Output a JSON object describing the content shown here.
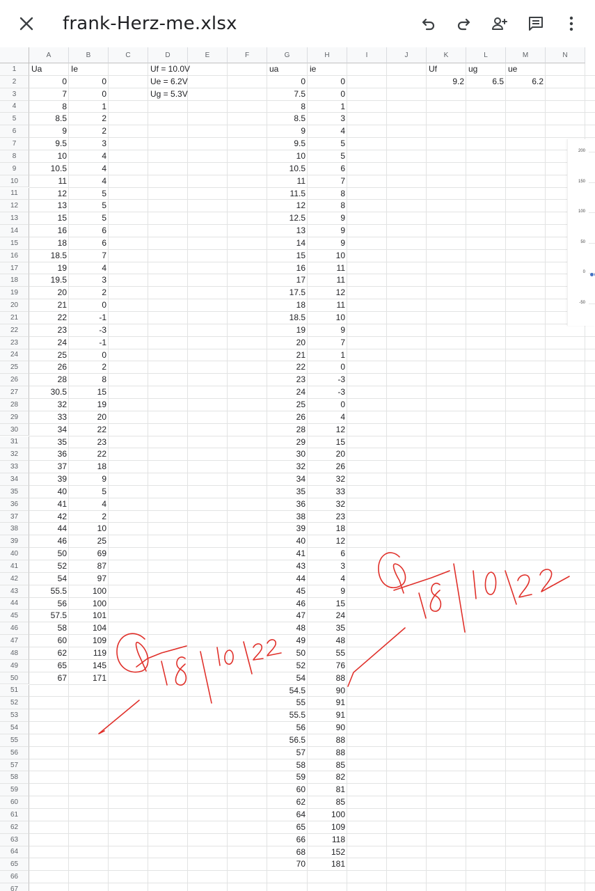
{
  "toolbar": {
    "title": "frank-Herz-me.xlsx",
    "close_icon": "close-icon",
    "undo_icon": "undo-icon",
    "redo_icon": "redo-icon",
    "share_icon": "add-person-icon",
    "comment_icon": "comment-icon",
    "more_icon": "more-vert-icon"
  },
  "columns": [
    "A",
    "B",
    "C",
    "D",
    "E",
    "F",
    "G",
    "H",
    "I",
    "J",
    "K",
    "L",
    "M",
    "N"
  ],
  "rows": [
    "1",
    "2",
    "3",
    "4",
    "5",
    "6",
    "7",
    "8",
    "9",
    "10",
    "11",
    "12",
    "13",
    "14",
    "15",
    "16",
    "17",
    "18",
    "19",
    "20",
    "21",
    "22",
    "23",
    "24",
    "25",
    "26",
    "27",
    "28",
    "29",
    "30",
    "31",
    "32",
    "33",
    "34",
    "35",
    "36",
    "37",
    "38",
    "39",
    "40",
    "41",
    "42",
    "43",
    "44",
    "45",
    "46",
    "47",
    "48",
    "49",
    "50",
    "51",
    "52",
    "53",
    "54",
    "55",
    "56",
    "57",
    "58",
    "59",
    "60",
    "61",
    "62",
    "63",
    "64",
    "65",
    "66",
    "67"
  ],
  "headers": {
    "A": "Ua",
    "B": "Ie",
    "G": "ua",
    "H": "ie",
    "K": "Uf",
    "L": "ug",
    "M": "ue"
  },
  "notes": [
    "Uf = 10.0V",
    "Ue = 6.2V",
    "Ug = 5.3V"
  ],
  "params": {
    "K": "9.2",
    "L": "6.5",
    "M": "6.2"
  },
  "col_A": [
    "0",
    "7",
    "8",
    "8.5",
    "9",
    "9.5",
    "10",
    "10.5",
    "11",
    "12",
    "13",
    "15",
    "16",
    "18",
    "18.5",
    "19",
    "19.5",
    "20",
    "21",
    "22",
    "23",
    "24",
    "25",
    "26",
    "28",
    "30.5",
    "32",
    "33",
    "34",
    "35",
    "36",
    "37",
    "39",
    "40",
    "41",
    "42",
    "44",
    "46",
    "50",
    "52",
    "54",
    "55.5",
    "56",
    "57.5",
    "58",
    "60",
    "62",
    "65",
    "67"
  ],
  "col_B": [
    "0",
    "0",
    "1",
    "2",
    "2",
    "3",
    "4",
    "4",
    "4",
    "5",
    "5",
    "5",
    "6",
    "6",
    "7",
    "4",
    "3",
    "2",
    "0",
    "-1",
    "-3",
    "-1",
    "0",
    "2",
    "8",
    "15",
    "19",
    "20",
    "22",
    "23",
    "22",
    "18",
    "9",
    "5",
    "4",
    "2",
    "10",
    "25",
    "69",
    "87",
    "97",
    "100",
    "100",
    "101",
    "104",
    "109",
    "119",
    "145",
    "171"
  ],
  "col_G": [
    "0",
    "7.5",
    "8",
    "8.5",
    "9",
    "9.5",
    "10",
    "10.5",
    "11",
    "11.5",
    "12",
    "12.5",
    "13",
    "14",
    "15",
    "16",
    "17",
    "17.5",
    "18",
    "18.5",
    "19",
    "20",
    "21",
    "22",
    "23",
    "24",
    "25",
    "26",
    "28",
    "29",
    "30",
    "32",
    "34",
    "35",
    "36",
    "38",
    "39",
    "40",
    "41",
    "43",
    "44",
    "45",
    "46",
    "47",
    "48",
    "49",
    "50",
    "52",
    "54",
    "54.5",
    "55",
    "55.5",
    "56",
    "56.5",
    "57",
    "58",
    "59",
    "60",
    "62",
    "64",
    "65",
    "66",
    "68",
    "70"
  ],
  "col_H": [
    "0",
    "0",
    "1",
    "3",
    "4",
    "5",
    "5",
    "6",
    "7",
    "8",
    "8",
    "9",
    "9",
    "9",
    "10",
    "11",
    "11",
    "12",
    "11",
    "10",
    "9",
    "7",
    "1",
    "0",
    "-3",
    "-3",
    "0",
    "4",
    "12",
    "15",
    "20",
    "26",
    "32",
    "33",
    "32",
    "23",
    "18",
    "12",
    "6",
    "3",
    "4",
    "9",
    "15",
    "24",
    "35",
    "48",
    "55",
    "76",
    "88",
    "90",
    "91",
    "91",
    "90",
    "88",
    "88",
    "85",
    "82",
    "81",
    "85",
    "100",
    "109",
    "118",
    "152",
    "181"
  ],
  "chart_snippet": {
    "y_ticks": [
      "200",
      "150",
      "100",
      "50",
      "0",
      "-50"
    ],
    "series_color": "#4472c4"
  },
  "handwriting": {
    "ink_color": "#e0302a"
  },
  "colors": {
    "header_bg": "#f8f9fa",
    "grid_line": "#e2e3e3"
  }
}
